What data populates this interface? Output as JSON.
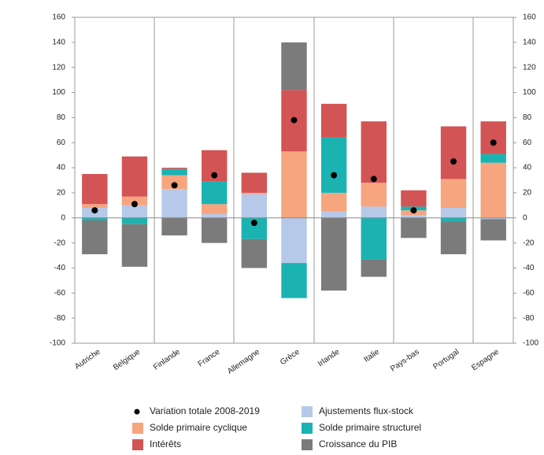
{
  "chart_data": {
    "type": "bar",
    "categories": [
      "Autriche",
      "Belgique",
      "Finlande",
      "France",
      "Allemagne",
      "Grèce",
      "Irlande",
      "Italie",
      "Pays-bas",
      "Portugal",
      "Espagne"
    ],
    "series": [
      {
        "name": "Ajustements flux-stock",
        "color": "#b7c9e8",
        "values": [
          8,
          10,
          23,
          3,
          19,
          -36,
          5,
          9,
          2,
          8,
          -1
        ]
      },
      {
        "name": "Solde primaire cyclique",
        "color": "#f6a57f",
        "values": [
          3,
          7,
          11,
          8,
          1,
          53,
          15,
          19,
          4,
          23,
          44
        ]
      },
      {
        "name": "Solde primaire structurel",
        "color": "#1bb3b1",
        "values": [
          -2,
          -5,
          5,
          18,
          -17,
          -28,
          44,
          -33,
          3,
          -3,
          7
        ]
      },
      {
        "name": "Intérêts",
        "color": "#d35454",
        "values": [
          24,
          32,
          1,
          25,
          16,
          49,
          27,
          49,
          13,
          42,
          26
        ]
      },
      {
        "name": "Croissance du PIB",
        "color": "#7b7b7b",
        "values": [
          -27,
          -34,
          -14,
          -20,
          -23,
          38,
          -58,
          -14,
          -16,
          -26,
          -17
        ]
      }
    ],
    "total": {
      "name": "Variation totale 2008-2019",
      "color": "#000000",
      "values": [
        6,
        11,
        26,
        34,
        -4,
        78,
        34,
        31,
        6,
        45,
        60
      ]
    },
    "ylim": [
      -100,
      160
    ],
    "yticks": [
      -100,
      -80,
      -60,
      -40,
      -20,
      0,
      20,
      40,
      60,
      80,
      100,
      120,
      140,
      160
    ]
  }
}
